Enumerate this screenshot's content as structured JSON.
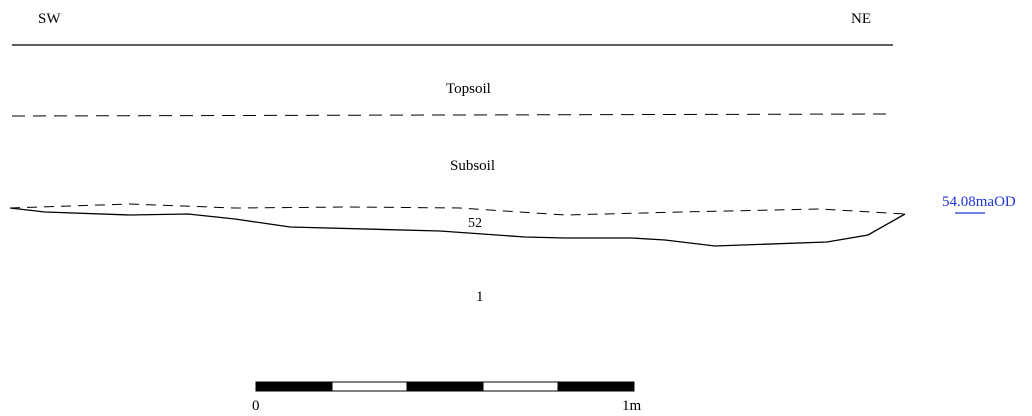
{
  "orientation": {
    "left": "SW",
    "right": "NE"
  },
  "layers": {
    "topsoil": "Topsoil",
    "subsoil": "Subsoil",
    "context_cut": "52",
    "context_fill": "1"
  },
  "datum": {
    "label": "54.08maOD",
    "color": "#1f35d6"
  },
  "scale_bar": {
    "start_label": "0",
    "end_label": "1m",
    "segments": [
      "black",
      "white",
      "black",
      "white",
      "black"
    ]
  }
}
